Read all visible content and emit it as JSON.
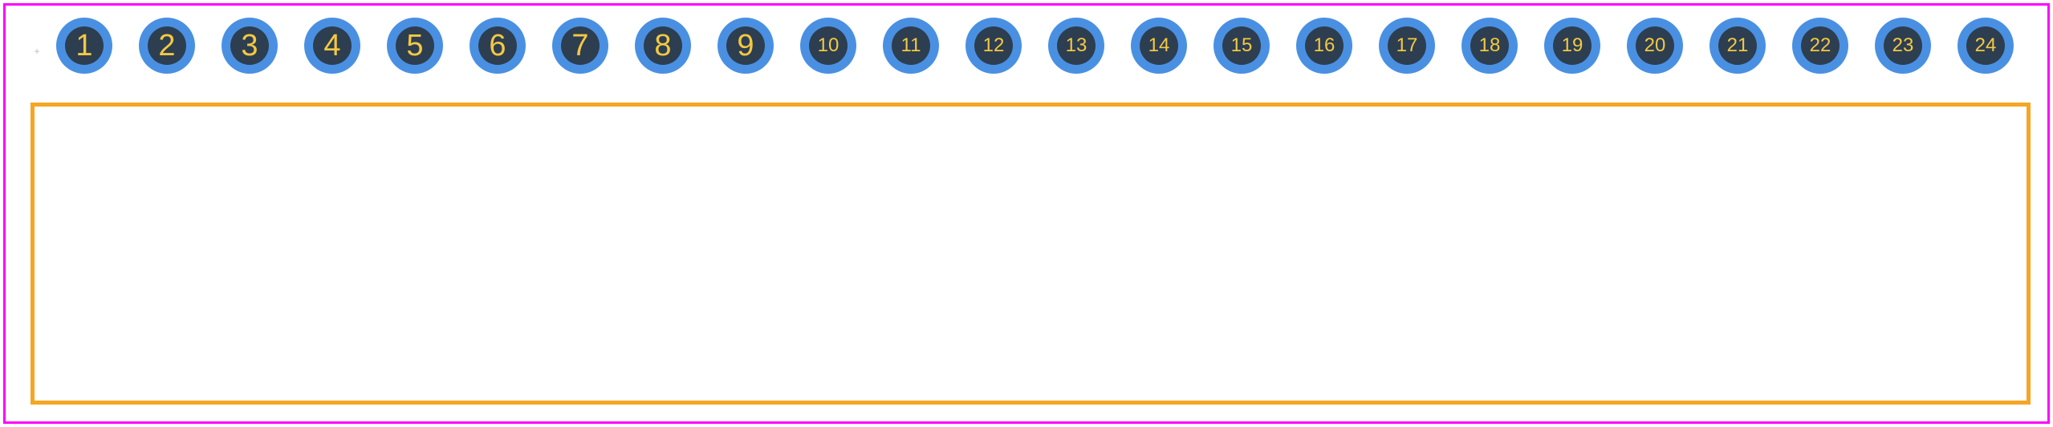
{
  "diagram": {
    "type": "pcb-footprint",
    "border_color": "#ff00ff",
    "background_color": "#ffffff",
    "pin": {
      "outer_color": "#4a90e2",
      "inner_color": "#2d3e50",
      "label_color": "#f5c842",
      "count": 24,
      "single_digit_fontsize": 38,
      "double_digit_fontsize": 24,
      "outer_diameter": 70,
      "inner_diameter": 48
    },
    "pins": [
      {
        "label": "1",
        "size": "large"
      },
      {
        "label": "2",
        "size": "large"
      },
      {
        "label": "3",
        "size": "large"
      },
      {
        "label": "4",
        "size": "large"
      },
      {
        "label": "5",
        "size": "large"
      },
      {
        "label": "6",
        "size": "large"
      },
      {
        "label": "7",
        "size": "large"
      },
      {
        "label": "8",
        "size": "large"
      },
      {
        "label": "9",
        "size": "large"
      },
      {
        "label": "10",
        "size": "small"
      },
      {
        "label": "11",
        "size": "small"
      },
      {
        "label": "12",
        "size": "small"
      },
      {
        "label": "13",
        "size": "small"
      },
      {
        "label": "14",
        "size": "small"
      },
      {
        "label": "15",
        "size": "small"
      },
      {
        "label": "16",
        "size": "small"
      },
      {
        "label": "17",
        "size": "small"
      },
      {
        "label": "18",
        "size": "small"
      },
      {
        "label": "19",
        "size": "small"
      },
      {
        "label": "20",
        "size": "small"
      },
      {
        "label": "21",
        "size": "small"
      },
      {
        "label": "22",
        "size": "small"
      },
      {
        "label": "23",
        "size": "small"
      },
      {
        "label": "24",
        "size": "small"
      }
    ],
    "component_body": {
      "border_color": "#f5a623",
      "border_width": 5
    },
    "origin_marker": {
      "symbol": "+",
      "color": "#bbbbbb"
    }
  }
}
